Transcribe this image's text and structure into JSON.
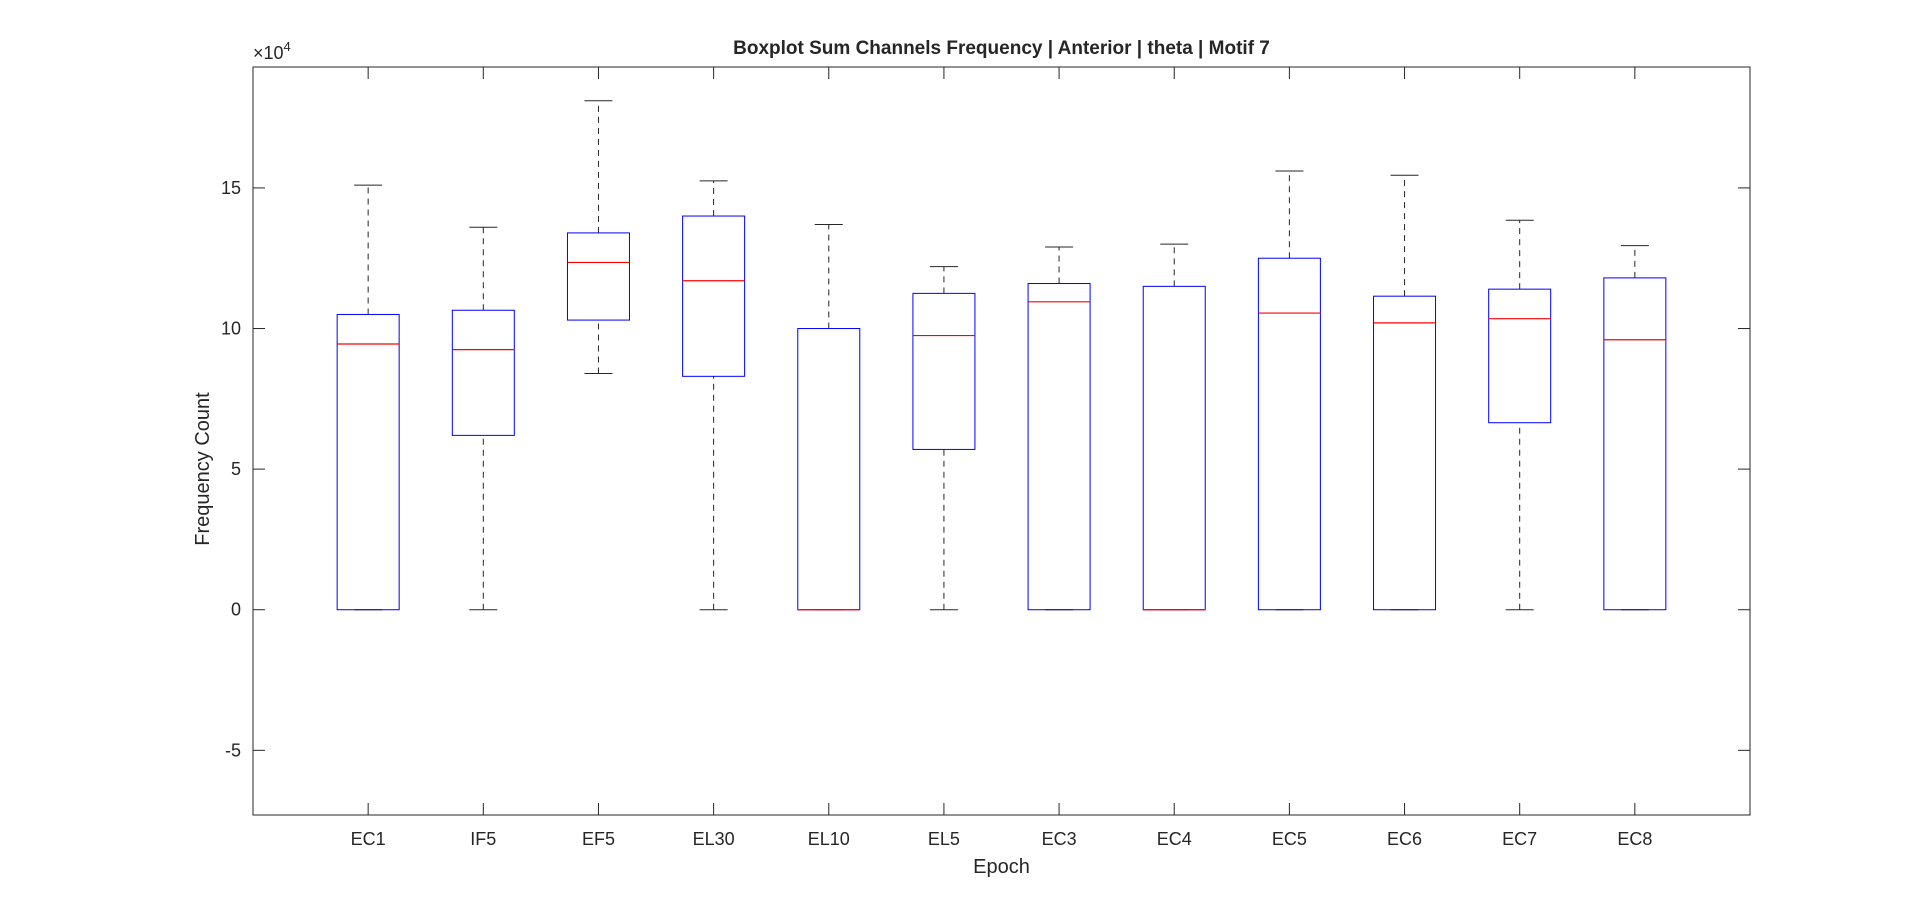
{
  "chart_data": {
    "type": "box",
    "title": "Boxplot Sum Channels Frequency | Anterior | theta | Motif 7",
    "xlabel": "Epoch",
    "ylabel": "Frequency Count",
    "y_exponent_label": "×10",
    "y_exponent_power": "4",
    "ylim": [
      -7.3,
      19.3
    ],
    "yticks": [
      -5,
      0,
      5,
      10,
      15
    ],
    "ytick_labels": [
      "-5",
      "0",
      "5",
      "10",
      "15"
    ],
    "grid": false,
    "colors": {
      "box": "#0000ff",
      "median": "#ff0000",
      "whisker": "#262626",
      "axes": "#262626"
    },
    "categories": [
      "EC1",
      "IF5",
      "EF5",
      "EL30",
      "EL10",
      "EL5",
      "EC3",
      "EC4",
      "EC5",
      "EC6",
      "EC7",
      "EC8"
    ],
    "boxes": [
      {
        "category": "EC1",
        "whisker_low": 0,
        "q1": 0,
        "median": 9.45,
        "q3": 10.5,
        "whisker_high": 15.1
      },
      {
        "category": "IF5",
        "whisker_low": 0,
        "q1": 6.2,
        "median": 9.25,
        "q3": 10.65,
        "whisker_high": 13.6
      },
      {
        "category": "EF5",
        "whisker_low": 8.4,
        "q1": 10.3,
        "median": 12.35,
        "q3": 13.4,
        "whisker_high": 18.1
      },
      {
        "category": "EL30",
        "whisker_low": 0,
        "q1": 8.3,
        "median": 11.7,
        "q3": 14.0,
        "whisker_high": 15.25
      },
      {
        "category": "EL10",
        "whisker_low": 0,
        "q1": 0,
        "median": 0,
        "q3": 10.0,
        "whisker_high": 13.7
      },
      {
        "category": "EL5",
        "whisker_low": 0,
        "q1": 5.7,
        "median": 9.75,
        "q3": 11.25,
        "whisker_high": 12.2
      },
      {
        "category": "EC3",
        "whisker_low": 0,
        "q1": 0,
        "median": 10.95,
        "q3": 11.6,
        "whisker_high": 12.9
      },
      {
        "category": "EC4",
        "whisker_low": 0,
        "q1": 0,
        "median": 0,
        "q3": 11.5,
        "whisker_high": 13.0
      },
      {
        "category": "EC5",
        "whisker_low": 0,
        "q1": 0,
        "median": 10.55,
        "q3": 12.5,
        "whisker_high": 15.6
      },
      {
        "category": "EC6",
        "whisker_low": 0,
        "q1": 0,
        "median": 10.2,
        "q3": 11.15,
        "whisker_high": 15.45
      },
      {
        "category": "EC7",
        "whisker_low": 0,
        "q1": 6.65,
        "median": 10.35,
        "q3": 11.4,
        "whisker_high": 13.85
      },
      {
        "category": "EC8",
        "whisker_low": 0,
        "q1": 0,
        "median": 9.6,
        "q3": 11.8,
        "whisker_high": 12.95
      }
    ]
  }
}
